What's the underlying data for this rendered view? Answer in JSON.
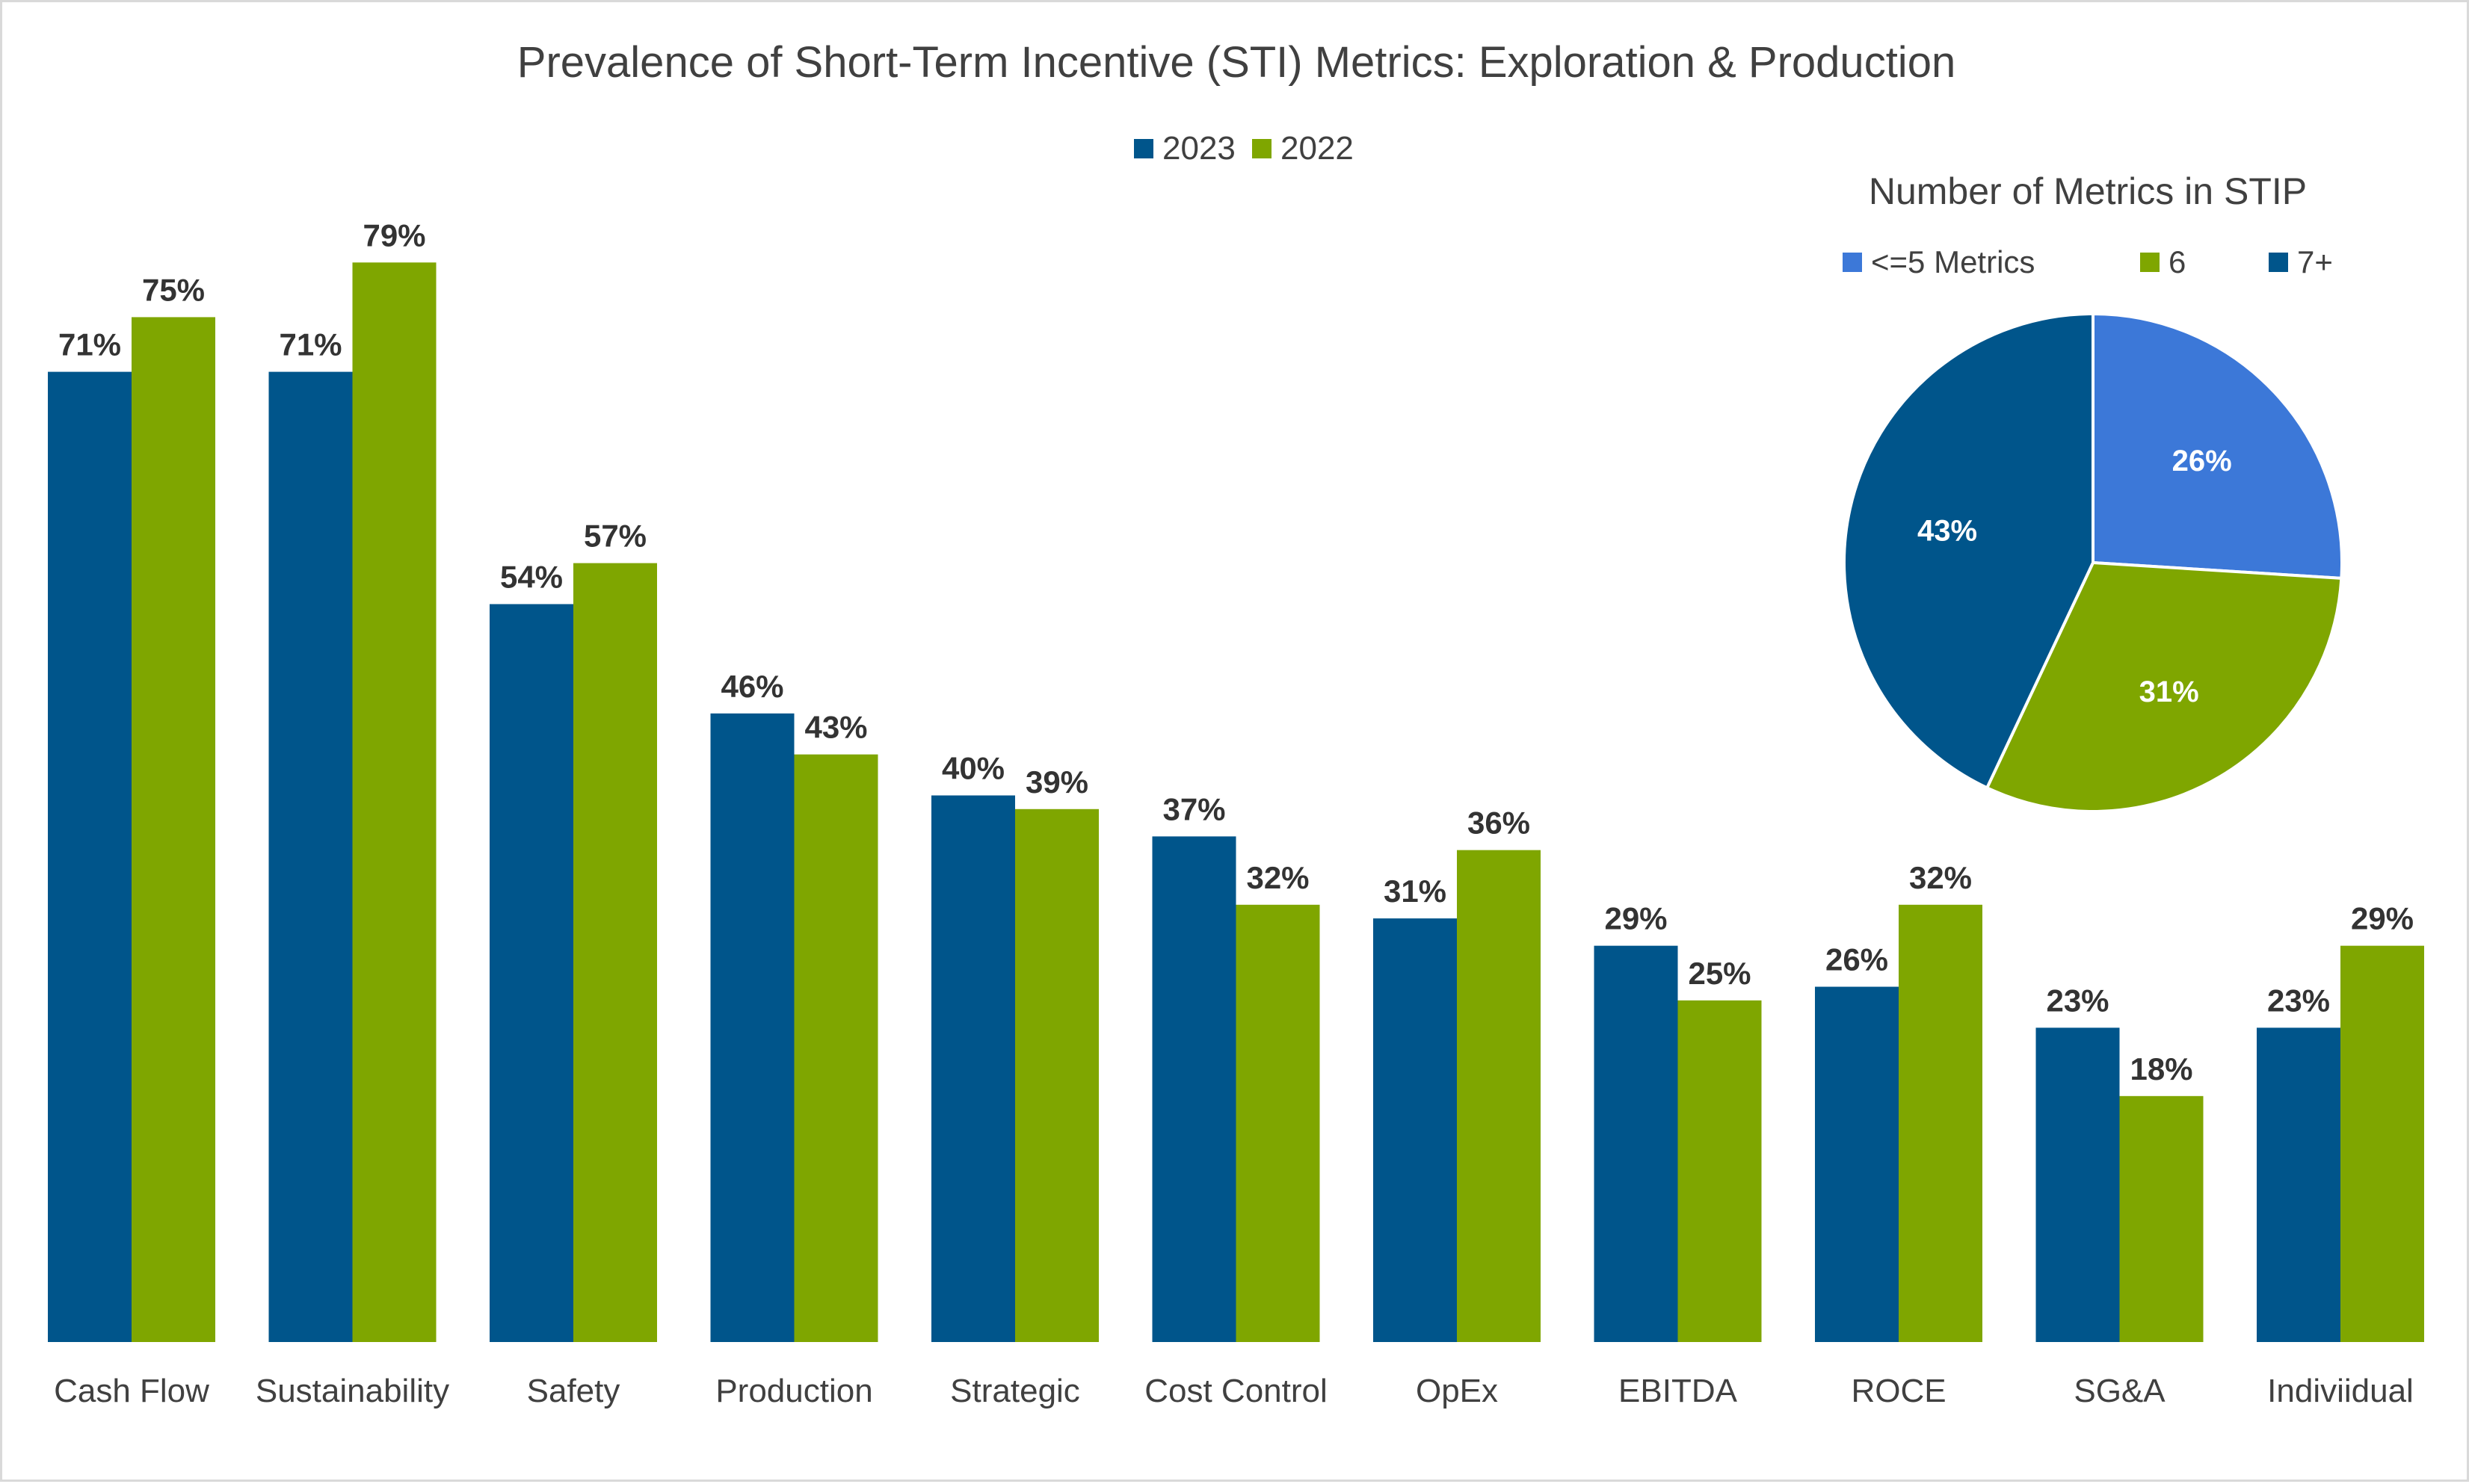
{
  "chart_data": [
    {
      "type": "bar",
      "title": "Prevalence of Short-Term Incentive (STI) Metrics: Exploration & Production",
      "categories": [
        "Cash Flow",
        "Sustainability",
        "Safety",
        "Production",
        "Strategic",
        "Cost Control",
        "OpEx",
        "EBITDA",
        "ROCE",
        "SG&A",
        "Indiviidual"
      ],
      "series": [
        {
          "name": "2023",
          "color": "#00558B",
          "values": [
            71,
            71,
            54,
            46,
            40,
            37,
            31,
            29,
            26,
            23,
            23
          ]
        },
        {
          "name": "2022",
          "color": "#7FA600",
          "values": [
            75,
            79,
            57,
            43,
            39,
            32,
            36,
            25,
            32,
            18,
            29
          ]
        }
      ],
      "value_suffix": "%",
      "ylim": [
        0,
        80
      ],
      "xlabel": "",
      "ylabel": "",
      "grid": false,
      "legend": "top-center"
    },
    {
      "type": "pie",
      "title": "Number of Metrics in STIP",
      "slices": [
        {
          "label": "<=5 Metrics",
          "value": 26,
          "color": "#3C78D8"
        },
        {
          "label": "6",
          "value": 31,
          "color": "#7FA600"
        },
        {
          "label": "7+",
          "value": 43,
          "color": "#00558B"
        }
      ],
      "value_suffix": "%",
      "start": "12 o'clock",
      "direction": "clockwise",
      "legend": "top"
    }
  ]
}
